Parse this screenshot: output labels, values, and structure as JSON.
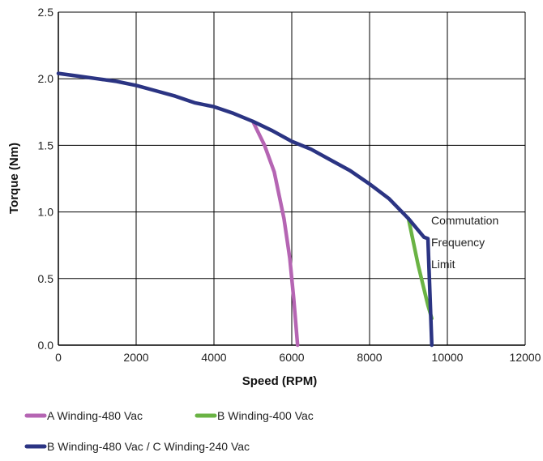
{
  "chart_data": {
    "type": "line",
    "title": "",
    "xlabel": "Speed (RPM)",
    "ylabel": "Torque (Nm)",
    "xlim": [
      0,
      12000
    ],
    "ylim": [
      0,
      2.5
    ],
    "xticks": [
      0,
      2000,
      4000,
      6000,
      8000,
      10000,
      12000
    ],
    "yticks": [
      0.0,
      0.5,
      1.0,
      1.5,
      2.0,
      2.5
    ],
    "xtick_labels": [
      "0",
      "2000",
      "4000",
      "6000",
      "8000",
      "10000",
      "12000"
    ],
    "ytick_labels": [
      "0.0",
      "0.5",
      "1.0",
      "1.5",
      "2.0",
      "2.5"
    ],
    "grid": true,
    "legend_position": "bottom",
    "annotation": [
      "Commutation",
      "Frequency",
      "Limit"
    ],
    "series": [
      {
        "name": "A Winding-480 Vac",
        "color": "#b565b3",
        "points": [
          [
            5000,
            1.68
          ],
          [
            5300,
            1.5
          ],
          [
            5550,
            1.3
          ],
          [
            5800,
            0.95
          ],
          [
            5950,
            0.65
          ],
          [
            6050,
            0.35
          ],
          [
            6150,
            0.0
          ]
        ]
      },
      {
        "name": "B Winding-400 Vac",
        "color": "#6ab344",
        "points": [
          [
            9000,
            0.95
          ],
          [
            9250,
            0.6
          ],
          [
            9500,
            0.3
          ],
          [
            9600,
            0.2
          ]
        ]
      },
      {
        "name": "B Winding-480 Vac / C Winding-240 Vac",
        "color": "#2b3483",
        "points": [
          [
            0,
            2.04
          ],
          [
            500,
            2.02
          ],
          [
            1000,
            2.0
          ],
          [
            1500,
            1.98
          ],
          [
            2000,
            1.95
          ],
          [
            2500,
            1.91
          ],
          [
            3000,
            1.87
          ],
          [
            3500,
            1.82
          ],
          [
            4000,
            1.79
          ],
          [
            4500,
            1.74
          ],
          [
            5000,
            1.68
          ],
          [
            5500,
            1.61
          ],
          [
            6000,
            1.53
          ],
          [
            6500,
            1.47
          ],
          [
            7000,
            1.39
          ],
          [
            7500,
            1.31
          ],
          [
            8000,
            1.21
          ],
          [
            8500,
            1.1
          ],
          [
            9000,
            0.95
          ],
          [
            9400,
            0.81
          ],
          [
            9500,
            0.8
          ],
          [
            9600,
            0.0
          ]
        ]
      }
    ]
  }
}
